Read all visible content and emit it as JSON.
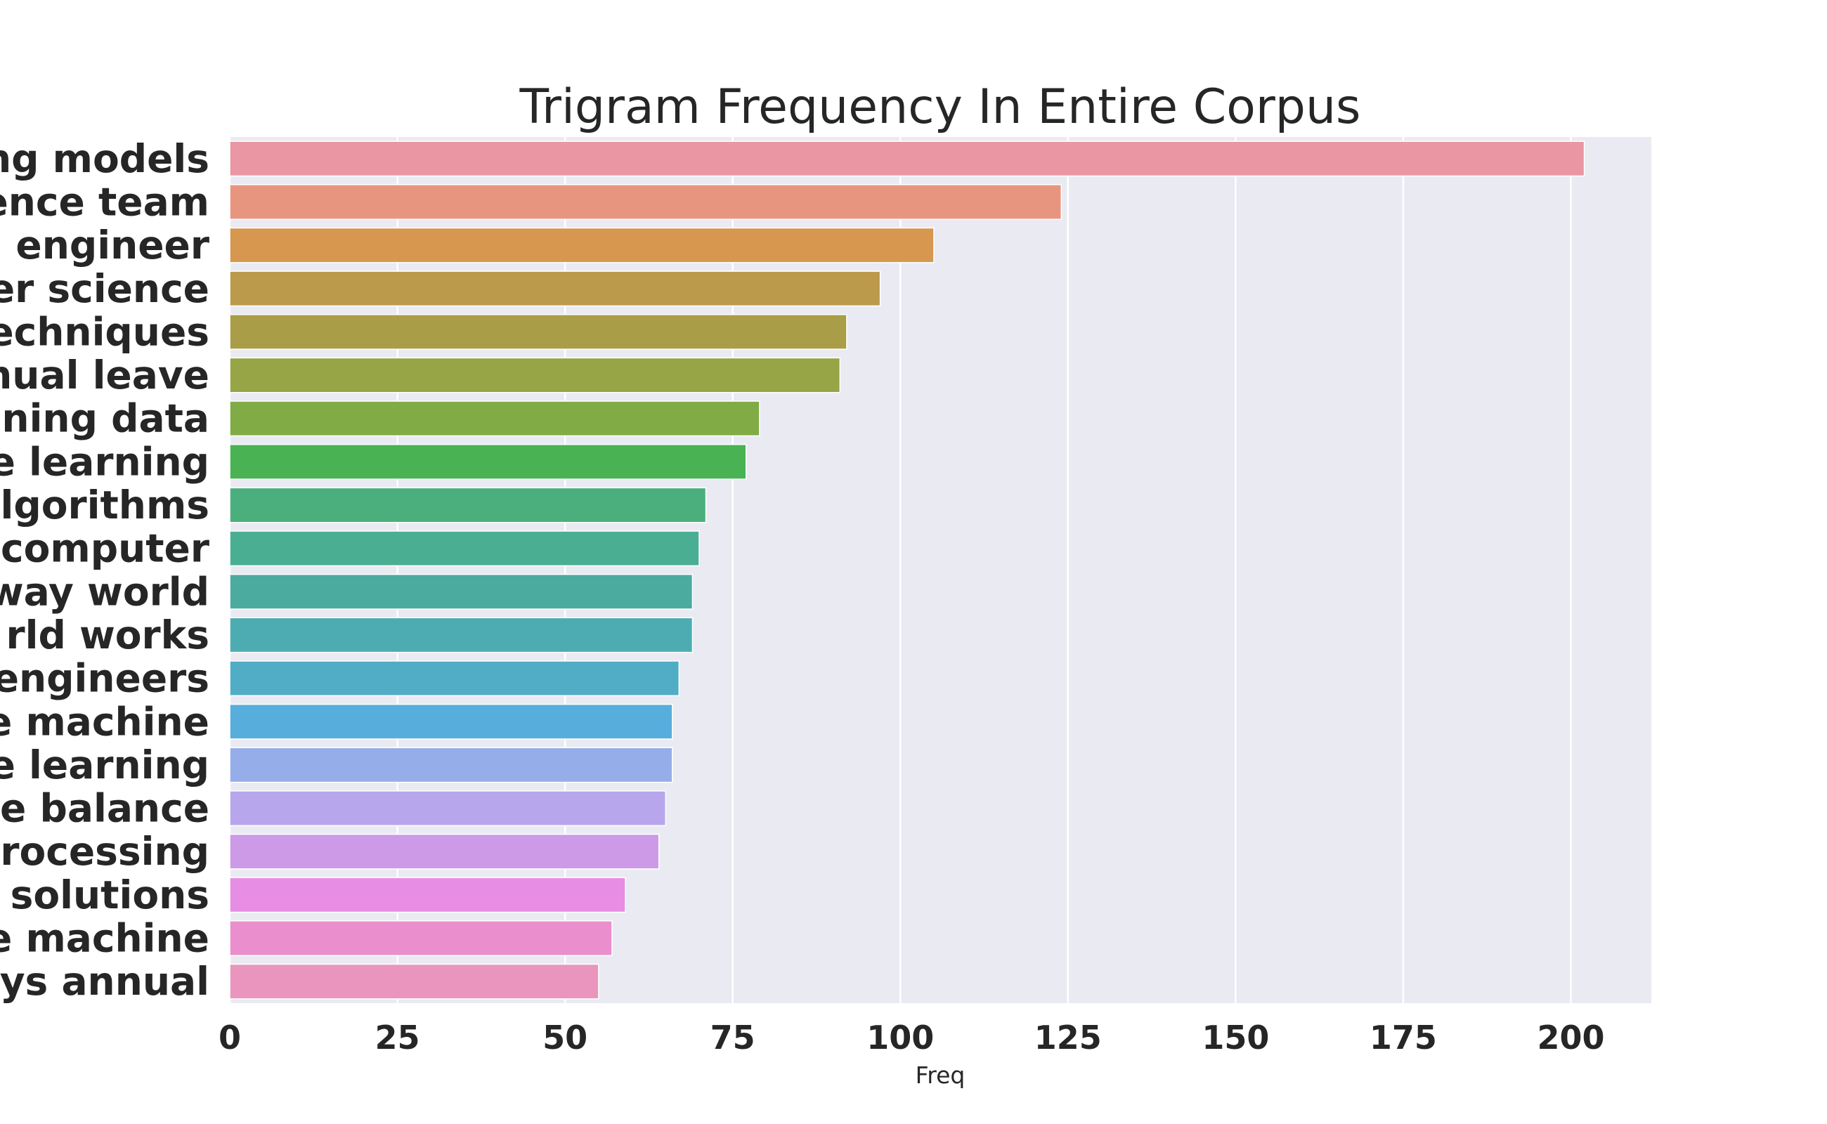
{
  "chart_data": {
    "type": "bar",
    "orientation": "horizontal",
    "title": "Trigram Frequency In Entire Corpus",
    "xlabel": "Freq",
    "ylabel": "",
    "xlim": [
      0,
      212
    ],
    "xticks": [
      0,
      25,
      50,
      75,
      100,
      125,
      150,
      175,
      200
    ],
    "grid": true,
    "background_color": "#eaeaf2",
    "grid_color": "#ffffff",
    "categories": [
      "ng models",
      "ence team",
      " engineer",
      "er science",
      "echniques",
      "nual leave",
      "ning data",
      "e learning",
      "lgorithms",
      "computer",
      "way world",
      "rld works",
      "engineers",
      "e machine",
      "e learning",
      "e balance",
      "rocessing",
      " solutions",
      "e machine",
      "ys annual"
    ],
    "values": [
      202,
      124,
      105,
      97,
      92,
      91,
      79,
      77,
      71,
      70,
      69,
      69,
      67,
      66,
      66,
      65,
      64,
      59,
      57,
      55
    ],
    "colors": [
      "#ea96a3",
      "#e8957f",
      "#d8974f",
      "#bc9a4c",
      "#a99e47",
      "#97a547",
      "#80ab45",
      "#49b353",
      "#4aaf7d",
      "#4aae92",
      "#4cab9f",
      "#4dacb1",
      "#50adc5",
      "#57addb",
      "#95aee9",
      "#b7a6eb",
      "#cd9ae8",
      "#e78de4",
      "#ea8ecd",
      "#e995bd"
    ]
  }
}
